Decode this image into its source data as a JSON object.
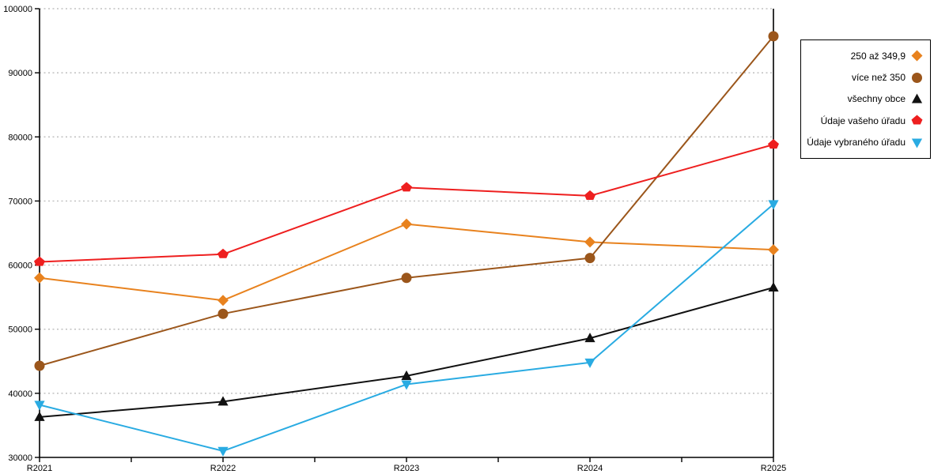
{
  "chart_data": {
    "type": "line",
    "title": "",
    "xlabel": "",
    "ylabel": "",
    "categories": [
      "R2021",
      "R2022",
      "R2023",
      "R2024",
      "R2025"
    ],
    "y_axis": {
      "min": 30000,
      "max": 100000,
      "tick_step": 10000,
      "tick_labels": [
        "30000",
        "40000",
        "50000",
        "60000",
        "70000",
        "80000",
        "90000",
        "100000"
      ]
    },
    "grid": "horizontal dotted lines at every 10000",
    "legend_position": "right-outside",
    "series": [
      {
        "name": "250 až 349,9",
        "marker": "diamond",
        "color": "#E8821E",
        "values": [
          58000,
          54500,
          66400,
          63600,
          62400
        ]
      },
      {
        "name": "více než 350",
        "marker": "circle",
        "color": "#9B561B",
        "values": [
          44300,
          52400,
          58000,
          61100,
          95700
        ]
      },
      {
        "name": "všechny obce",
        "marker": "triangle-up",
        "color": "#111111",
        "values": [
          36300,
          38700,
          42700,
          48600,
          56500
        ]
      },
      {
        "name": "Údaje vašeho úřadu",
        "marker": "pentagon",
        "color": "#EE1F1F",
        "values": [
          60500,
          61700,
          72100,
          70800,
          78800
        ]
      },
      {
        "name": "Údaje vybraného úřadu",
        "marker": "triangle-down",
        "color": "#29ABE2",
        "values": [
          38200,
          31000,
          41400,
          44800,
          69500
        ]
      }
    ]
  },
  "colors": {
    "background": "#FFFFFF",
    "axis": "#000000",
    "gridline": "#B3B3B3",
    "legend_border": "#000000",
    "text": "#000000"
  }
}
